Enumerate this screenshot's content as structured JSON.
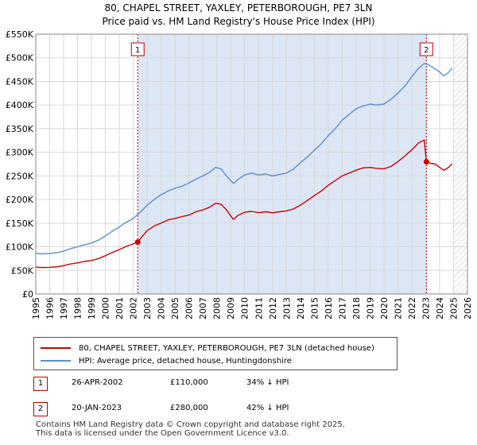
{
  "chart_data": {
    "type": "line",
    "title": "80, CHAPEL STREET, YAXLEY, PETERBOROUGH, PE7 3LN",
    "subtitle": "Price paid vs. HM Land Registry's House Price Index (HPI)",
    "xlim": [
      1995,
      2026
    ],
    "ylim": [
      0,
      550000
    ],
    "x_ticks": [
      "1995",
      "1996",
      "1997",
      "1998",
      "1999",
      "2000",
      "2001",
      "2002",
      "2003",
      "2004",
      "2005",
      "2006",
      "2007",
      "2008",
      "2009",
      "2010",
      "2011",
      "2012",
      "2013",
      "2014",
      "2015",
      "2016",
      "2017",
      "2018",
      "2019",
      "2020",
      "2021",
      "2022",
      "2023",
      "2024",
      "2025",
      "2026"
    ],
    "y_ticks": [
      {
        "value": 0,
        "label": "£0"
      },
      {
        "value": 50000,
        "label": "£50K"
      },
      {
        "value": 100000,
        "label": "£100K"
      },
      {
        "value": 150000,
        "label": "£150K"
      },
      {
        "value": 200000,
        "label": "£200K"
      },
      {
        "value": 250000,
        "label": "£250K"
      },
      {
        "value": 300000,
        "label": "£300K"
      },
      {
        "value": 350000,
        "label": "£350K"
      },
      {
        "value": 400000,
        "label": "£400K"
      },
      {
        "value": 450000,
        "label": "£450K"
      },
      {
        "value": 500000,
        "label": "£500K"
      },
      {
        "value": 550000,
        "label": "£550K"
      }
    ],
    "shaded_range": [
      2002.32,
      2023.05
    ],
    "future_hatch_from": 2025.0,
    "series": [
      {
        "name": "80, CHAPEL STREET, YAXLEY, PETERBOROUGH, PE7 3LN (detached house)",
        "color": "#cc0000",
        "points": [
          [
            1995.0,
            57000
          ],
          [
            1995.5,
            56000
          ],
          [
            1996.0,
            56500
          ],
          [
            1996.5,
            57500
          ],
          [
            1997.0,
            60000
          ],
          [
            1997.5,
            63500
          ],
          [
            1998.0,
            66000
          ],
          [
            1998.5,
            69000
          ],
          [
            1999.0,
            71000
          ],
          [
            1999.5,
            75000
          ],
          [
            2000.0,
            81000
          ],
          [
            2000.5,
            88000
          ],
          [
            2001.0,
            94000
          ],
          [
            2001.5,
            101000
          ],
          [
            2002.0,
            106000
          ],
          [
            2002.32,
            110000
          ],
          [
            2002.7,
            124000
          ],
          [
            2003.0,
            134000
          ],
          [
            2003.5,
            144000
          ],
          [
            2004.0,
            150000
          ],
          [
            2004.5,
            157000
          ],
          [
            2005.0,
            160000
          ],
          [
            2005.5,
            164000
          ],
          [
            2006.0,
            167000
          ],
          [
            2006.5,
            174000
          ],
          [
            2007.0,
            178000
          ],
          [
            2007.5,
            184000
          ],
          [
            2007.9,
            192000
          ],
          [
            2008.3,
            190000
          ],
          [
            2008.7,
            178000
          ],
          [
            2009.0,
            165000
          ],
          [
            2009.2,
            158000
          ],
          [
            2009.5,
            166000
          ],
          [
            2010.0,
            173000
          ],
          [
            2010.5,
            175000
          ],
          [
            2011.0,
            172000
          ],
          [
            2011.5,
            174000
          ],
          [
            2012.0,
            172000
          ],
          [
            2012.5,
            174000
          ],
          [
            2013.0,
            176000
          ],
          [
            2013.5,
            180000
          ],
          [
            2014.0,
            188000
          ],
          [
            2014.5,
            198000
          ],
          [
            2015.0,
            208000
          ],
          [
            2015.5,
            218000
          ],
          [
            2016.0,
            230000
          ],
          [
            2016.5,
            240000
          ],
          [
            2017.0,
            250000
          ],
          [
            2017.5,
            256000
          ],
          [
            2018.0,
            262000
          ],
          [
            2018.5,
            267000
          ],
          [
            2019.0,
            268000
          ],
          [
            2019.5,
            266000
          ],
          [
            2020.0,
            265000
          ],
          [
            2020.5,
            270000
          ],
          [
            2021.0,
            280000
          ],
          [
            2021.5,
            292000
          ],
          [
            2022.0,
            305000
          ],
          [
            2022.5,
            320000
          ],
          [
            2022.9,
            326000
          ],
          [
            2023.05,
            280000
          ],
          [
            2023.3,
            277000
          ],
          [
            2023.7,
            275000
          ],
          [
            2024.0,
            268000
          ],
          [
            2024.3,
            262000
          ],
          [
            2024.6,
            267000
          ],
          [
            2024.9,
            276000
          ]
        ]
      },
      {
        "name": "HPI: Average price, detached house, Huntingdonshire",
        "color": "#5b8fd0",
        "points": [
          [
            1995.0,
            86000
          ],
          [
            1995.5,
            85000
          ],
          [
            1996.0,
            86000
          ],
          [
            1996.5,
            87500
          ],
          [
            1997.0,
            91000
          ],
          [
            1997.5,
            96000
          ],
          [
            1998.0,
            100000
          ],
          [
            1998.5,
            104000
          ],
          [
            1999.0,
            108000
          ],
          [
            1999.5,
            114000
          ],
          [
            2000.0,
            123000
          ],
          [
            2000.5,
            133000
          ],
          [
            2001.0,
            142000
          ],
          [
            2001.5,
            152000
          ],
          [
            2002.0,
            160000
          ],
          [
            2002.5,
            173000
          ],
          [
            2003.0,
            188000
          ],
          [
            2003.5,
            200000
          ],
          [
            2004.0,
            210000
          ],
          [
            2004.5,
            218000
          ],
          [
            2005.0,
            224000
          ],
          [
            2005.5,
            228000
          ],
          [
            2006.0,
            235000
          ],
          [
            2006.5,
            243000
          ],
          [
            2007.0,
            250000
          ],
          [
            2007.5,
            258000
          ],
          [
            2007.9,
            268000
          ],
          [
            2008.3,
            265000
          ],
          [
            2008.7,
            250000
          ],
          [
            2009.0,
            240000
          ],
          [
            2009.2,
            234000
          ],
          [
            2009.6,
            244000
          ],
          [
            2010.0,
            252000
          ],
          [
            2010.5,
            256000
          ],
          [
            2011.0,
            252000
          ],
          [
            2011.5,
            254000
          ],
          [
            2012.0,
            250000
          ],
          [
            2012.5,
            253000
          ],
          [
            2013.0,
            256000
          ],
          [
            2013.5,
            264000
          ],
          [
            2014.0,
            278000
          ],
          [
            2014.5,
            290000
          ],
          [
            2015.0,
            304000
          ],
          [
            2015.5,
            318000
          ],
          [
            2016.0,
            335000
          ],
          [
            2016.5,
            350000
          ],
          [
            2017.0,
            368000
          ],
          [
            2017.5,
            380000
          ],
          [
            2018.0,
            392000
          ],
          [
            2018.5,
            398000
          ],
          [
            2019.0,
            402000
          ],
          [
            2019.5,
            400000
          ],
          [
            2020.0,
            402000
          ],
          [
            2020.5,
            412000
          ],
          [
            2021.0,
            425000
          ],
          [
            2021.5,
            440000
          ],
          [
            2022.0,
            460000
          ],
          [
            2022.5,
            478000
          ],
          [
            2022.9,
            488000
          ],
          [
            2023.2,
            485000
          ],
          [
            2023.6,
            478000
          ],
          [
            2024.0,
            470000
          ],
          [
            2024.3,
            462000
          ],
          [
            2024.6,
            468000
          ],
          [
            2024.9,
            478000
          ]
        ]
      }
    ],
    "markers": [
      {
        "label": "1",
        "x": 2002.32,
        "y": 110000
      },
      {
        "label": "2",
        "x": 2023.05,
        "y": 280000
      }
    ]
  },
  "legend": {
    "property_label": "80, CHAPEL STREET, YAXLEY, PETERBOROUGH, PE7 3LN (detached house)",
    "hpi_label": "HPI: Average price, detached house, Huntingdonshire"
  },
  "sales": [
    {
      "num": "1",
      "date": "26-APR-2002",
      "price": "£110,000",
      "hpi": "34% ↓ HPI"
    },
    {
      "num": "2",
      "date": "20-JAN-2023",
      "price": "£280,000",
      "hpi": "42% ↓ HPI"
    }
  ],
  "footer": {
    "line1": "Contains HM Land Registry data © Crown copyright and database right 2025.",
    "line2": "This data is licensed under the Open Government Licence v3.0."
  },
  "colors": {
    "property": "#cc0000",
    "hpi": "#5b8fd0",
    "shade": "#dde6f5",
    "marker_line": "#cc0000"
  }
}
